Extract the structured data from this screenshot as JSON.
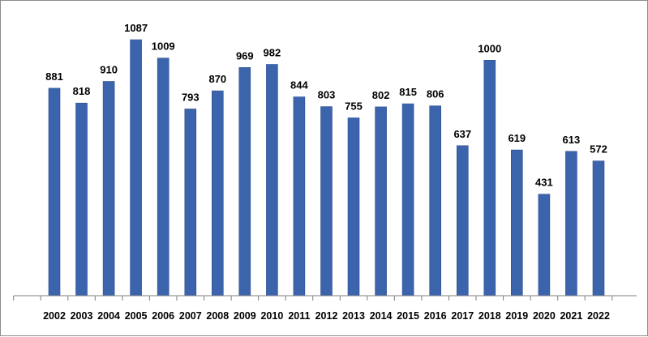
{
  "chart_data": {
    "type": "bar",
    "categories": [
      "2002",
      "2003",
      "2004",
      "2005",
      "2006",
      "2007",
      "2008",
      "2009",
      "2010",
      "2011",
      "2012",
      "2013",
      "2014",
      "2015",
      "2016",
      "2017",
      "2018",
      "2019",
      "2020",
      "2021",
      "2022"
    ],
    "values": [
      881,
      818,
      910,
      1087,
      1009,
      793,
      870,
      969,
      982,
      844,
      803,
      755,
      802,
      815,
      806,
      637,
      1000,
      619,
      431,
      613,
      572
    ],
    "title": "",
    "xlabel": "",
    "ylabel": "",
    "ylim": [
      0,
      1087
    ],
    "grid": false,
    "legend": "none",
    "bar_color": "#3b64ad",
    "data_labels": true
  }
}
